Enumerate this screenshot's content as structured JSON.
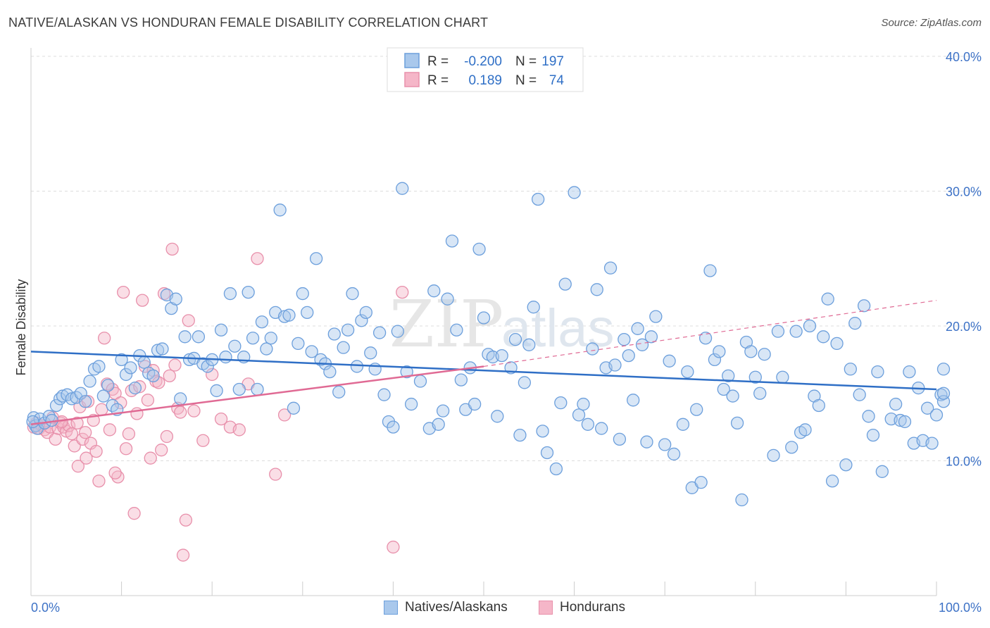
{
  "title": "NATIVE/ALASKAN VS HONDURAN FEMALE DISABILITY CORRELATION CHART",
  "source": "Source: ZipAtlas.com",
  "watermark": {
    "left": "ZIP",
    "right": "atlas"
  },
  "colors": {
    "blue_fill": "#a9c8ec",
    "blue_stroke": "#6c9fdc",
    "blue_line": "#2f6fc6",
    "pink_fill": "#f5b6c8",
    "pink_stroke": "#e890ab",
    "pink_line": "#e06a94",
    "axis_label": "#3d72c6",
    "grid": "#dddddd"
  },
  "legend": [
    {
      "r_label": "R =",
      "r_value": "-0.200",
      "n_label": "N =",
      "n_value": "197"
    },
    {
      "r_label": "R =",
      "r_value": "0.189",
      "n_label": "N =",
      "n_value": "74"
    }
  ],
  "chart_data": {
    "type": "scatter",
    "ylabel": "Female Disability",
    "xlim": [
      0,
      100
    ],
    "ylim": [
      0,
      40
    ],
    "x_tick_labels": [
      "0.0%",
      "100.0%"
    ],
    "y_ticks": [
      10,
      20,
      30,
      40
    ],
    "y_tick_labels": [
      "10.0%",
      "20.0%",
      "30.0%",
      "40.0%"
    ],
    "grid": true,
    "legend_position": "top-center",
    "series": [
      {
        "name": "Natives/Alaskans",
        "trend": {
          "x0": 0,
          "y0": 18.1,
          "x1": 100,
          "y1": 15.3,
          "dashed_extension": false
        },
        "points": [
          [
            0.3,
            13.2
          ],
          [
            0.5,
            12.6
          ],
          [
            0.7,
            12.4
          ],
          [
            1.0,
            13.1
          ],
          [
            1.5,
            12.8
          ],
          [
            2.0,
            13.3
          ],
          [
            2.3,
            13.0
          ],
          [
            2.8,
            14.1
          ],
          [
            3.2,
            14.6
          ],
          [
            3.5,
            14.8
          ],
          [
            4.0,
            14.9
          ],
          [
            4.5,
            14.6
          ],
          [
            5.0,
            14.7
          ],
          [
            5.5,
            15.0
          ],
          [
            6.0,
            14.4
          ],
          [
            6.5,
            15.9
          ],
          [
            7.0,
            16.8
          ],
          [
            7.5,
            17.0
          ],
          [
            8.0,
            14.8
          ],
          [
            8.5,
            15.6
          ],
          [
            9.0,
            14.1
          ],
          [
            9.5,
            13.8
          ],
          [
            10.0,
            17.5
          ],
          [
            10.5,
            16.4
          ],
          [
            11.0,
            16.9
          ],
          [
            11.5,
            15.4
          ],
          [
            12.0,
            17.8
          ],
          [
            12.5,
            17.3
          ],
          [
            13.0,
            16.5
          ],
          [
            13.5,
            16.3
          ],
          [
            14.0,
            18.2
          ],
          [
            14.5,
            18.3
          ],
          [
            15.0,
            22.3
          ],
          [
            15.5,
            21.3
          ],
          [
            16.0,
            22.0
          ],
          [
            16.5,
            14.6
          ],
          [
            17.0,
            19.2
          ],
          [
            17.5,
            17.5
          ],
          [
            18.0,
            17.6
          ],
          [
            18.5,
            19.2
          ],
          [
            19.0,
            17.2
          ],
          [
            19.5,
            17.0
          ],
          [
            20.0,
            17.5
          ],
          [
            20.5,
            15.2
          ],
          [
            21.0,
            19.7
          ],
          [
            21.5,
            17.7
          ],
          [
            22.0,
            22.4
          ],
          [
            22.5,
            18.5
          ],
          [
            23.0,
            15.3
          ],
          [
            23.5,
            17.7
          ],
          [
            24.0,
            22.5
          ],
          [
            24.5,
            19.1
          ],
          [
            25.0,
            15.3
          ],
          [
            25.5,
            20.3
          ],
          [
            26.0,
            18.3
          ],
          [
            26.5,
            19.1
          ],
          [
            27.0,
            21.0
          ],
          [
            27.5,
            28.6
          ],
          [
            28.0,
            20.7
          ],
          [
            28.5,
            20.8
          ],
          [
            29.0,
            13.9
          ],
          [
            29.5,
            18.7
          ],
          [
            30.0,
            22.4
          ],
          [
            30.5,
            21.0
          ],
          [
            31.0,
            18.1
          ],
          [
            31.5,
            25.0
          ],
          [
            32.0,
            17.5
          ],
          [
            32.5,
            17.2
          ],
          [
            33.0,
            16.6
          ],
          [
            33.5,
            19.4
          ],
          [
            34.0,
            15.1
          ],
          [
            34.5,
            18.4
          ],
          [
            35.0,
            19.7
          ],
          [
            35.5,
            22.4
          ],
          [
            36.0,
            17.0
          ],
          [
            36.5,
            20.4
          ],
          [
            37.0,
            21.0
          ],
          [
            37.5,
            18.0
          ],
          [
            38.0,
            16.8
          ],
          [
            38.5,
            19.5
          ],
          [
            39.0,
            14.9
          ],
          [
            39.5,
            12.9
          ],
          [
            40.0,
            12.5
          ],
          [
            40.5,
            19.6
          ],
          [
            41.0,
            30.2
          ],
          [
            41.5,
            16.6
          ],
          [
            42.0,
            14.2
          ],
          [
            43.0,
            15.9
          ],
          [
            44.0,
            12.4
          ],
          [
            44.5,
            22.6
          ],
          [
            45.0,
            12.7
          ],
          [
            45.5,
            13.7
          ],
          [
            46.0,
            22.0
          ],
          [
            46.5,
            26.3
          ],
          [
            47.0,
            19.7
          ],
          [
            47.5,
            16.0
          ],
          [
            48.0,
            13.8
          ],
          [
            48.5,
            16.9
          ],
          [
            49.0,
            14.2
          ],
          [
            49.5,
            25.7
          ],
          [
            50.0,
            20.6
          ],
          [
            50.5,
            17.9
          ],
          [
            51.0,
            17.7
          ],
          [
            51.5,
            13.3
          ],
          [
            52.0,
            17.8
          ],
          [
            53.0,
            16.9
          ],
          [
            53.5,
            19.0
          ],
          [
            54.0,
            11.9
          ],
          [
            54.5,
            15.8
          ],
          [
            55.0,
            18.6
          ],
          [
            55.5,
            21.4
          ],
          [
            56.0,
            29.4
          ],
          [
            56.5,
            12.2
          ],
          [
            57.0,
            10.6
          ],
          [
            58.0,
            9.4
          ],
          [
            58.5,
            14.3
          ],
          [
            59.0,
            23.1
          ],
          [
            60.0,
            29.9
          ],
          [
            60.5,
            13.4
          ],
          [
            61.0,
            14.2
          ],
          [
            61.5,
            12.7
          ],
          [
            62.0,
            18.3
          ],
          [
            62.5,
            22.7
          ],
          [
            63.0,
            12.4
          ],
          [
            63.5,
            16.9
          ],
          [
            64.0,
            24.3
          ],
          [
            64.5,
            17.1
          ],
          [
            65.0,
            11.6
          ],
          [
            65.5,
            19.0
          ],
          [
            66.0,
            17.8
          ],
          [
            66.5,
            14.5
          ],
          [
            67.0,
            19.8
          ],
          [
            67.5,
            18.6
          ],
          [
            68.0,
            11.4
          ],
          [
            68.5,
            19.2
          ],
          [
            69.0,
            20.7
          ],
          [
            70.0,
            11.2
          ],
          [
            70.5,
            17.4
          ],
          [
            71.0,
            10.5
          ],
          [
            72.0,
            12.7
          ],
          [
            72.5,
            16.6
          ],
          [
            73.0,
            8.0
          ],
          [
            73.5,
            13.8
          ],
          [
            74.0,
            8.4
          ],
          [
            74.5,
            19.1
          ],
          [
            75.0,
            24.1
          ],
          [
            75.5,
            17.5
          ],
          [
            76.0,
            18.1
          ],
          [
            76.5,
            15.3
          ],
          [
            77.0,
            16.3
          ],
          [
            77.5,
            14.8
          ],
          [
            78.0,
            12.8
          ],
          [
            78.5,
            7.1
          ],
          [
            79.0,
            18.8
          ],
          [
            79.5,
            18.1
          ],
          [
            80.0,
            16.2
          ],
          [
            80.5,
            15.0
          ],
          [
            81.0,
            17.9
          ],
          [
            82.0,
            10.4
          ],
          [
            82.5,
            19.6
          ],
          [
            83.0,
            16.2
          ],
          [
            84.0,
            11.0
          ],
          [
            84.5,
            19.6
          ],
          [
            85.0,
            12.1
          ],
          [
            85.5,
            12.3
          ],
          [
            86.0,
            20.0
          ],
          [
            86.5,
            14.8
          ],
          [
            87.0,
            14.1
          ],
          [
            87.5,
            19.2
          ],
          [
            88.0,
            22.0
          ],
          [
            88.5,
            8.5
          ],
          [
            89.0,
            18.7
          ],
          [
            90.0,
            9.7
          ],
          [
            90.5,
            16.8
          ],
          [
            91.0,
            20.2
          ],
          [
            91.5,
            14.9
          ],
          [
            92.0,
            21.5
          ],
          [
            92.5,
            13.3
          ],
          [
            93.0,
            11.9
          ],
          [
            93.5,
            16.6
          ],
          [
            94.0,
            9.2
          ],
          [
            95.0,
            13.1
          ],
          [
            95.5,
            14.2
          ],
          [
            96.0,
            13.0
          ],
          [
            96.5,
            12.9
          ],
          [
            97.0,
            16.6
          ],
          [
            97.5,
            11.3
          ],
          [
            98.0,
            15.4
          ],
          [
            98.5,
            11.5
          ],
          [
            99.0,
            13.9
          ],
          [
            99.5,
            11.3
          ],
          [
            100.0,
            13.4
          ],
          [
            100.5,
            14.9
          ],
          [
            101.0,
            14.4
          ],
          [
            101.5,
            15.0
          ],
          [
            102.0,
            16.8
          ],
          [
            0.2,
            12.9
          ]
        ]
      },
      {
        "name": "Hondurans",
        "trend": {
          "x0": 0,
          "y0": 12.7,
          "x1": 50,
          "y1": 17.0,
          "dashed_x1": 100,
          "dashed_y1": 21.9,
          "dashed_extension": true
        },
        "points": [
          [
            0.3,
            12.5
          ],
          [
            0.6,
            12.8
          ],
          [
            0.9,
            12.4
          ],
          [
            1.2,
            12.6
          ],
          [
            1.5,
            12.3
          ],
          [
            1.8,
            12.1
          ],
          [
            2.1,
            12.5
          ],
          [
            2.4,
            13.2
          ],
          [
            2.7,
            11.6
          ],
          [
            3.0,
            12.4
          ],
          [
            3.3,
            12.8
          ],
          [
            3.6,
            12.5
          ],
          [
            3.9,
            12.2
          ],
          [
            4.2,
            12.6
          ],
          [
            4.5,
            12.0
          ],
          [
            4.8,
            11.1
          ],
          [
            5.1,
            12.8
          ],
          [
            5.4,
            14.0
          ],
          [
            5.7,
            11.6
          ],
          [
            6.0,
            12.1
          ],
          [
            6.3,
            14.4
          ],
          [
            6.6,
            11.3
          ],
          [
            6.9,
            13.0
          ],
          [
            7.2,
            10.7
          ],
          [
            7.5,
            8.5
          ],
          [
            7.8,
            13.8
          ],
          [
            8.1,
            19.1
          ],
          [
            8.4,
            15.7
          ],
          [
            8.7,
            12.3
          ],
          [
            9.0,
            15.3
          ],
          [
            9.3,
            15.0
          ],
          [
            9.6,
            8.8
          ],
          [
            9.9,
            14.3
          ],
          [
            10.2,
            22.5
          ],
          [
            10.5,
            10.9
          ],
          [
            10.8,
            12.0
          ],
          [
            11.1,
            15.2
          ],
          [
            11.4,
            6.1
          ],
          [
            11.7,
            13.5
          ],
          [
            12.0,
            15.5
          ],
          [
            12.3,
            21.9
          ],
          [
            12.6,
            17.0
          ],
          [
            12.9,
            14.5
          ],
          [
            13.2,
            10.2
          ],
          [
            13.5,
            16.7
          ],
          [
            13.8,
            15.9
          ],
          [
            14.1,
            15.8
          ],
          [
            14.4,
            10.8
          ],
          [
            14.7,
            22.4
          ],
          [
            15.0,
            11.8
          ],
          [
            15.3,
            16.3
          ],
          [
            15.6,
            25.7
          ],
          [
            15.9,
            17.1
          ],
          [
            16.2,
            13.9
          ],
          [
            16.5,
            13.6
          ],
          [
            16.8,
            3.0
          ],
          [
            17.1,
            5.6
          ],
          [
            17.4,
            20.4
          ],
          [
            18.0,
            13.7
          ],
          [
            19.0,
            11.5
          ],
          [
            20.0,
            16.4
          ],
          [
            21.0,
            13.1
          ],
          [
            22.0,
            12.5
          ],
          [
            23.0,
            12.3
          ],
          [
            24.0,
            15.7
          ],
          [
            25.0,
            25.0
          ],
          [
            27.0,
            9.0
          ],
          [
            28.0,
            13.4
          ],
          [
            40.0,
            3.6
          ],
          [
            41.0,
            22.5
          ],
          [
            5.2,
            9.6
          ],
          [
            6.1,
            10.2
          ],
          [
            3.4,
            12.9
          ],
          [
            9.3,
            9.1
          ]
        ]
      }
    ]
  }
}
